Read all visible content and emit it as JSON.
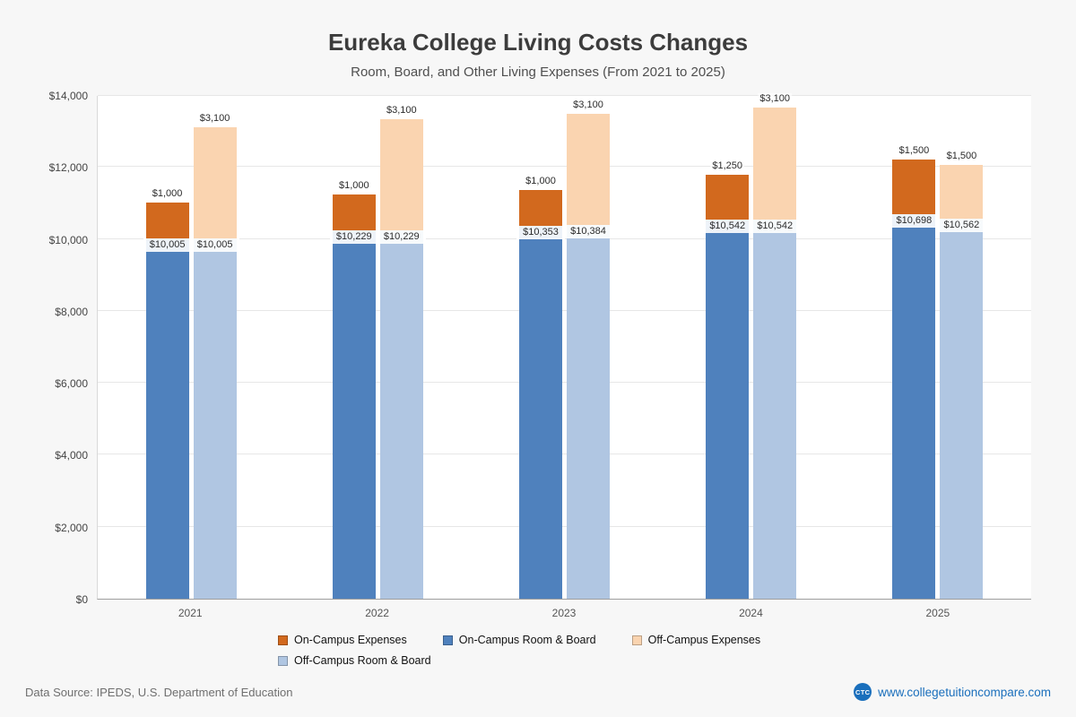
{
  "chart_data": {
    "type": "bar",
    "stacked": true,
    "title": "Eureka College Living Costs Changes",
    "subtitle": "Room, Board, and Other Living Expenses (From 2021 to 2025)",
    "categories": [
      "2021",
      "2022",
      "2023",
      "2024",
      "2025"
    ],
    "ylim": [
      0,
      14000
    ],
    "yticks": [
      0,
      2000,
      4000,
      6000,
      8000,
      10000,
      12000,
      14000
    ],
    "ytick_labels": [
      "$0",
      "$2,000",
      "$4,000",
      "$6,000",
      "$8,000",
      "$10,000",
      "$12,000",
      "$14,000"
    ],
    "grid": true,
    "legend_position": "bottom",
    "series": [
      {
        "name": "On-Campus Room & Board",
        "stack": "on-campus",
        "position": "bottom",
        "color": "#4F81BD",
        "values": [
          10005,
          10229,
          10353,
          10542,
          10698
        ],
        "labels": [
          "$10,005",
          "$10,229",
          "$10,353",
          "$10,542",
          "$10,698"
        ]
      },
      {
        "name": "On-Campus Expenses",
        "stack": "on-campus",
        "position": "top",
        "color": "#D2691E",
        "values": [
          1000,
          1000,
          1000,
          1250,
          1500
        ],
        "labels": [
          "$1,000",
          "$1,000",
          "$1,000",
          "$1,250",
          "$1,500"
        ]
      },
      {
        "name": "Off-Campus Room & Board",
        "stack": "off-campus",
        "position": "bottom",
        "color": "#B0C6E2",
        "values": [
          10005,
          10229,
          10384,
          10542,
          10562
        ],
        "labels": [
          "$10,005",
          "$10,229",
          "$10,384",
          "$10,542",
          "$10,562"
        ]
      },
      {
        "name": "Off-Campus Expenses",
        "stack": "off-campus",
        "position": "top",
        "color": "#FAD4B0",
        "values": [
          3100,
          3100,
          3100,
          3100,
          1500
        ],
        "labels": [
          "$3,100",
          "$3,100",
          "$3,100",
          "$3,100",
          "$1,500"
        ]
      }
    ],
    "legend": {
      "items": [
        {
          "label": "On-Campus Expenses",
          "color": "#D2691E"
        },
        {
          "label": "On-Campus Room & Board",
          "color": "#4F81BD"
        },
        {
          "label": "Off-Campus Expenses",
          "color": "#FAD4B0"
        },
        {
          "label": "Off-Campus Room & Board",
          "color": "#B0C6E2"
        }
      ]
    }
  },
  "footer": {
    "data_source": "Data Source: IPEDS, U.S. Department of Education",
    "logo_text": "CTC",
    "website": "www.collegetuitioncompare.com"
  }
}
